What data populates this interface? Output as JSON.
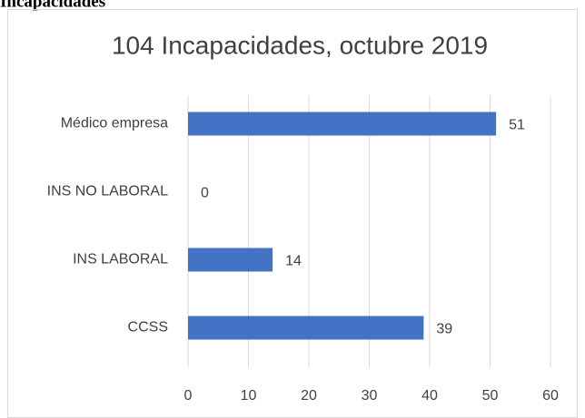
{
  "heading": "Incapacidades",
  "chart_data": {
    "type": "bar",
    "orientation": "horizontal",
    "title": "104 Incapacidades,  octubre 2019",
    "categories": [
      "Médico empresa",
      "INS NO LABORAL",
      "INS LABORAL",
      "CCSS"
    ],
    "values": [
      51,
      0,
      14,
      39
    ],
    "color": "#4472c4",
    "xlim": [
      0,
      60
    ],
    "xticks": [
      0,
      10,
      20,
      30,
      40,
      50,
      60
    ],
    "grid": true
  }
}
